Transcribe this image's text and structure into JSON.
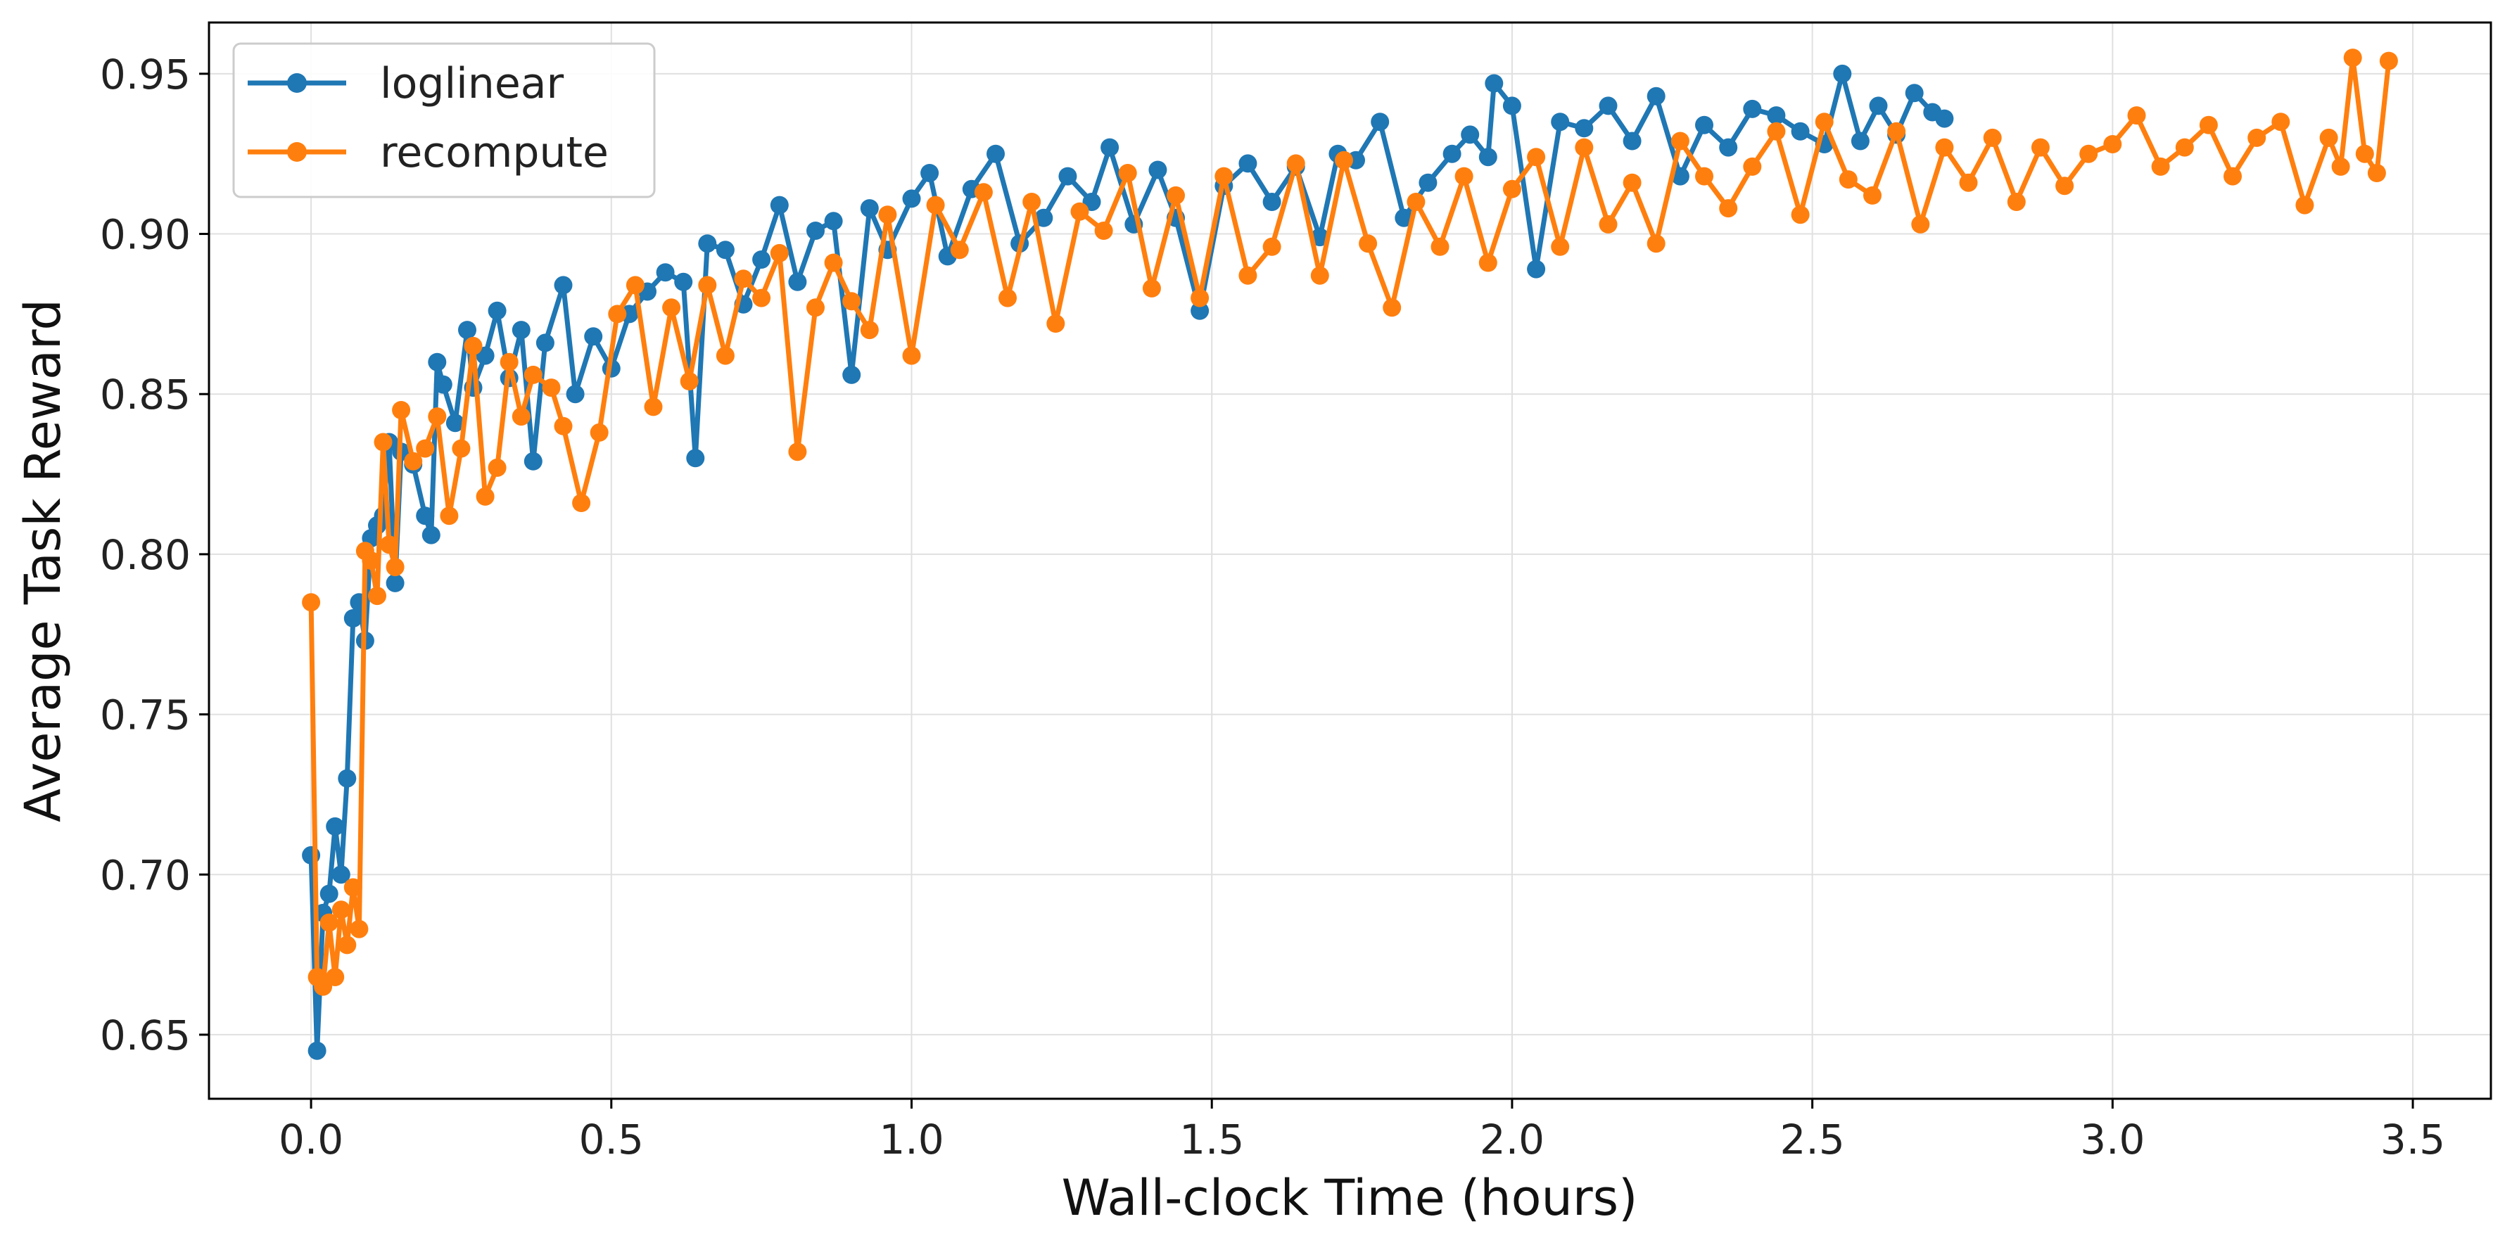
{
  "chart_data": {
    "type": "line",
    "title": "",
    "xlabel": "Wall-clock Time (hours)",
    "ylabel": "Average Task Reward",
    "xlim": [
      -0.17,
      3.63
    ],
    "ylim": [
      0.63,
      0.966
    ],
    "xticks": [
      0.0,
      0.5,
      1.0,
      1.5,
      2.0,
      2.5,
      3.0,
      3.5
    ],
    "xtick_labels": [
      "0.0",
      "0.5",
      "1.0",
      "1.5",
      "2.0",
      "2.5",
      "3.0",
      "3.5"
    ],
    "yticks": [
      0.65,
      0.7,
      0.75,
      0.8,
      0.85,
      0.9,
      0.95
    ],
    "ytick_labels": [
      "0.65",
      "0.70",
      "0.75",
      "0.80",
      "0.85",
      "0.90",
      "0.95"
    ],
    "grid": true,
    "legend": "top-left",
    "series": [
      {
        "name": "loglinear",
        "color": "#1f77b4",
        "x": [
          0.0,
          0.01,
          0.02,
          0.03,
          0.04,
          0.05,
          0.06,
          0.07,
          0.08,
          0.09,
          0.1,
          0.11,
          0.12,
          0.13,
          0.14,
          0.15,
          0.17,
          0.19,
          0.2,
          0.21,
          0.22,
          0.24,
          0.26,
          0.27,
          0.29,
          0.31,
          0.33,
          0.35,
          0.37,
          0.39,
          0.42,
          0.44,
          0.47,
          0.5,
          0.53,
          0.56,
          0.59,
          0.62,
          0.64,
          0.66,
          0.69,
          0.72,
          0.75,
          0.78,
          0.81,
          0.84,
          0.87,
          0.9,
          0.93,
          0.96,
          1.0,
          1.03,
          1.06,
          1.1,
          1.14,
          1.18,
          1.22,
          1.26,
          1.3,
          1.33,
          1.37,
          1.41,
          1.44,
          1.48,
          1.52,
          1.56,
          1.6,
          1.64,
          1.68,
          1.71,
          1.74,
          1.78,
          1.82,
          1.86,
          1.9,
          1.93,
          1.96,
          1.97,
          2.0,
          2.04,
          2.08,
          2.12,
          2.16,
          2.2,
          2.24,
          2.28,
          2.32,
          2.36,
          2.4,
          2.44,
          2.48,
          2.52,
          2.55,
          2.58,
          2.61,
          2.64,
          2.67,
          2.7,
          2.72
        ],
        "values": [
          0.706,
          0.645,
          0.688,
          0.694,
          0.715,
          0.7,
          0.73,
          0.78,
          0.785,
          0.773,
          0.805,
          0.809,
          0.812,
          0.835,
          0.791,
          0.832,
          0.828,
          0.812,
          0.806,
          0.86,
          0.853,
          0.841,
          0.87,
          0.852,
          0.862,
          0.876,
          0.855,
          0.87,
          0.829,
          0.866,
          0.884,
          0.85,
          0.868,
          0.858,
          0.875,
          0.882,
          0.888,
          0.885,
          0.83,
          0.897,
          0.895,
          0.878,
          0.892,
          0.909,
          0.885,
          0.901,
          0.904,
          0.856,
          0.908,
          0.895,
          0.911,
          0.919,
          0.893,
          0.914,
          0.925,
          0.897,
          0.905,
          0.918,
          0.91,
          0.927,
          0.903,
          0.92,
          0.905,
          0.876,
          0.915,
          0.922,
          0.91,
          0.921,
          0.899,
          0.925,
          0.923,
          0.935,
          0.905,
          0.916,
          0.925,
          0.931,
          0.924,
          0.947,
          0.94,
          0.889,
          0.935,
          0.933,
          0.94,
          0.929,
          0.943,
          0.918,
          0.934,
          0.927,
          0.939,
          0.937,
          0.932,
          0.928,
          0.95,
          0.929,
          0.94,
          0.931,
          0.944,
          0.938,
          0.936
        ]
      },
      {
        "name": "recompute",
        "color": "#ff7f0e",
        "x": [
          0.0,
          0.01,
          0.02,
          0.03,
          0.04,
          0.05,
          0.06,
          0.07,
          0.08,
          0.09,
          0.1,
          0.11,
          0.12,
          0.13,
          0.14,
          0.15,
          0.17,
          0.19,
          0.21,
          0.23,
          0.25,
          0.27,
          0.29,
          0.31,
          0.33,
          0.35,
          0.37,
          0.4,
          0.42,
          0.45,
          0.48,
          0.51,
          0.54,
          0.57,
          0.6,
          0.63,
          0.66,
          0.69,
          0.72,
          0.75,
          0.78,
          0.81,
          0.84,
          0.87,
          0.9,
          0.93,
          0.96,
          1.0,
          1.04,
          1.08,
          1.12,
          1.16,
          1.2,
          1.24,
          1.28,
          1.32,
          1.36,
          1.4,
          1.44,
          1.48,
          1.52,
          1.56,
          1.6,
          1.64,
          1.68,
          1.72,
          1.76,
          1.8,
          1.84,
          1.88,
          1.92,
          1.96,
          2.0,
          2.04,
          2.08,
          2.12,
          2.16,
          2.2,
          2.24,
          2.28,
          2.32,
          2.36,
          2.4,
          2.44,
          2.48,
          2.52,
          2.56,
          2.6,
          2.64,
          2.68,
          2.72,
          2.76,
          2.8,
          2.84,
          2.88,
          2.92,
          2.96,
          3.0,
          3.04,
          3.08,
          3.12,
          3.16,
          3.2,
          3.24,
          3.28,
          3.32,
          3.36,
          3.38,
          3.4,
          3.42,
          3.44,
          3.46
        ],
        "values": [
          0.785,
          0.668,
          0.665,
          0.685,
          0.668,
          0.689,
          0.678,
          0.696,
          0.683,
          0.801,
          0.798,
          0.787,
          0.835,
          0.803,
          0.796,
          0.845,
          0.829,
          0.833,
          0.843,
          0.812,
          0.833,
          0.865,
          0.818,
          0.827,
          0.86,
          0.843,
          0.856,
          0.852,
          0.84,
          0.816,
          0.838,
          0.875,
          0.884,
          0.846,
          0.877,
          0.854,
          0.884,
          0.862,
          0.886,
          0.88,
          0.894,
          0.832,
          0.877,
          0.891,
          0.879,
          0.87,
          0.906,
          0.862,
          0.909,
          0.895,
          0.913,
          0.88,
          0.91,
          0.872,
          0.907,
          0.901,
          0.919,
          0.883,
          0.912,
          0.88,
          0.918,
          0.887,
          0.896,
          0.922,
          0.887,
          0.923,
          0.897,
          0.877,
          0.91,
          0.896,
          0.918,
          0.891,
          0.914,
          0.924,
          0.896,
          0.927,
          0.903,
          0.916,
          0.897,
          0.929,
          0.918,
          0.908,
          0.921,
          0.932,
          0.906,
          0.935,
          0.917,
          0.912,
          0.932,
          0.903,
          0.927,
          0.916,
          0.93,
          0.91,
          0.927,
          0.915,
          0.925,
          0.928,
          0.937,
          0.921,
          0.927,
          0.934,
          0.918,
          0.93,
          0.935,
          0.909,
          0.93,
          0.921,
          0.955,
          0.925,
          0.919,
          0.954
        ]
      }
    ]
  }
}
